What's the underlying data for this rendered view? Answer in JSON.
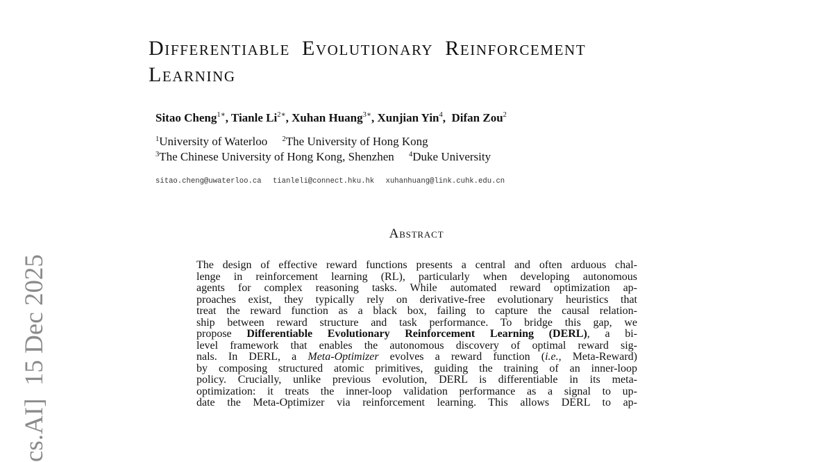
{
  "title": {
    "line1": "Differentiable Evolutionary Reinforcement",
    "line2": "Learning"
  },
  "authors": [
    {
      "name": "Sitao Cheng",
      "sup": "1∗"
    },
    {
      "name": "Tianle Li",
      "sup": "2∗"
    },
    {
      "name": "Xuhan Huang",
      "sup": "3∗"
    },
    {
      "name": "Xunjian Yin",
      "sup": "4"
    },
    {
      "name": "Difan Zou",
      "sup": "2"
    }
  ],
  "affiliations": [
    {
      "sup": "1",
      "name": "University of Waterloo"
    },
    {
      "sup": "2",
      "name": "The University of Hong Kong"
    },
    {
      "sup": "3",
      "name": "The Chinese University of Hong Kong, Shenzhen"
    },
    {
      "sup": "4",
      "name": "Duke University"
    }
  ],
  "emails": [
    "sitao.cheng@uwaterloo.ca",
    "tianleli@connect.hku.hk",
    "xuhanhuang@link.cuhk.edu.cn"
  ],
  "abstract": {
    "heading": "Abstract",
    "lines": [
      "The design of effective reward functions presents a central and often arduous chal-",
      "lenge in reinforcement learning (RL), particularly when developing autonomous",
      "agents for complex reasoning tasks.  While automated reward optimization ap-",
      "proaches exist, they typically rely on derivative-free evolutionary heuristics that",
      "treat the reward function as a black box, failing to capture the causal relation-",
      "ship between reward structure and task performance.  To bridge this gap, we",
      {
        "a": "propose ",
        "b": "Differentiable Evolutionary Reinforcement Learning (DERL)",
        "c": ", a bi-"
      },
      "level framework that enables the autonomous discovery of optimal reward sig-",
      {
        "a": "nals. In DERL, a ",
        "i1": "Meta-Optimizer",
        "b": " evolves a reward function (",
        "i2": "i.e.,",
        "c": " Meta-Reward)"
      },
      "by composing structured atomic primitives, guiding the training of an inner-loop",
      "policy.  Crucially, unlike previous evolution, DERL is differentiable in its meta-",
      "optimization:  it treats the inner-loop validation performance as a signal to up-",
      "date the Meta-Optimizer via reinforcement learning.  This allows DERL to ap-"
    ]
  },
  "sidebar_stamp": "cs.AI]  15 Dec 2025"
}
